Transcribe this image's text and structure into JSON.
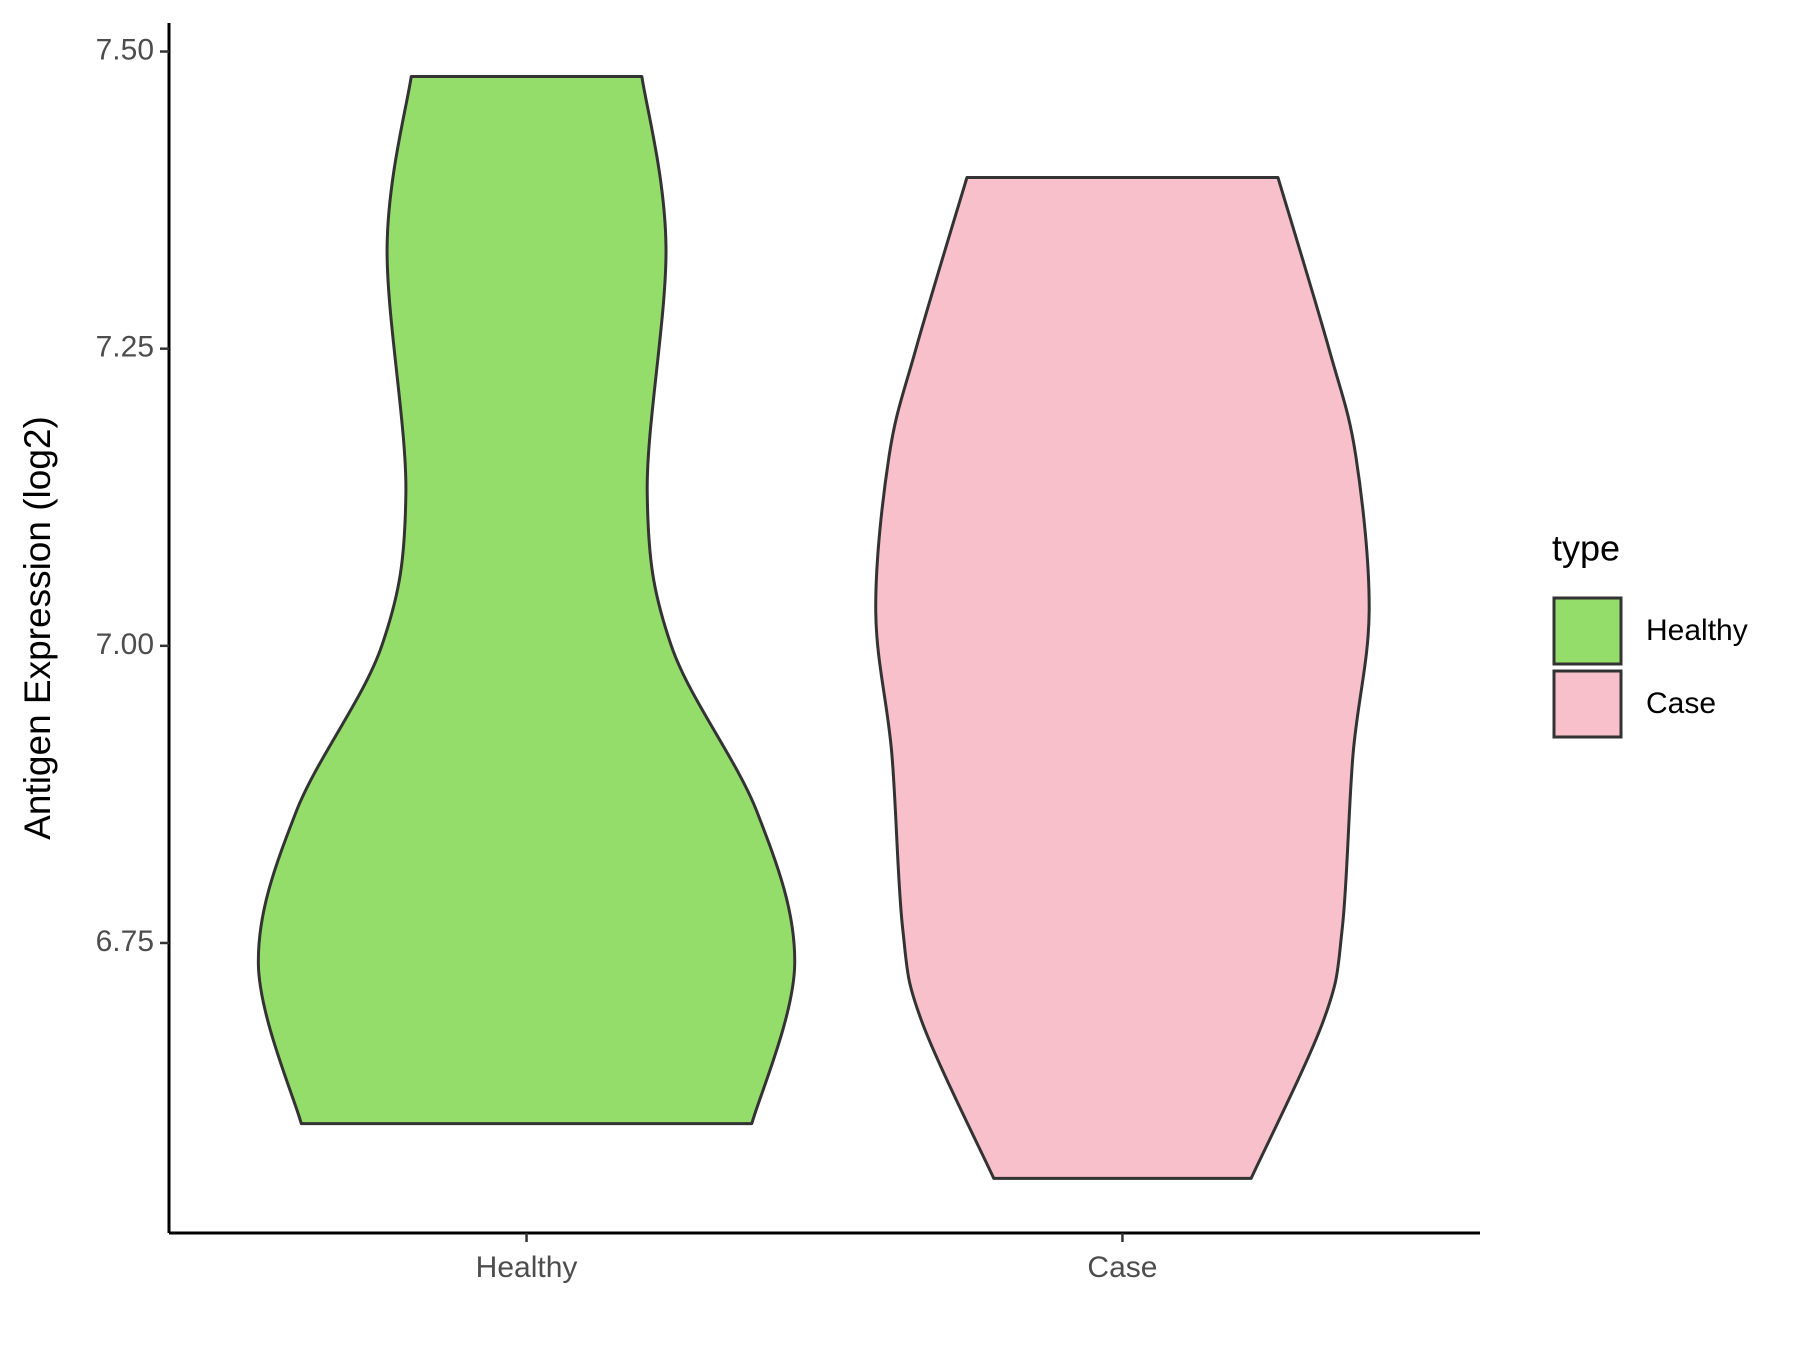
{
  "chart_data": {
    "type": "violin",
    "y_label": "Antigen Expression (log2)",
    "categories": [
      "Healthy",
      "Case"
    ],
    "series": [
      {
        "name": "Healthy",
        "color": "#95dd6b",
        "y": [
          7.479,
          7.336,
          7.129,
          7.0,
          6.86,
          6.732,
          6.598
        ],
        "density": [
          0.43,
          0.52,
          0.45,
          0.54,
          0.86,
          1.0,
          0.84
        ]
      },
      {
        "name": "Case",
        "color": "#f7c0cb",
        "y": [
          7.394,
          7.25,
          7.16,
          7.029,
          6.909,
          6.763,
          6.685,
          6.552
        ],
        "density": [
          0.58,
          0.77,
          0.87,
          0.92,
          0.86,
          0.82,
          0.75,
          0.48
        ]
      }
    ],
    "ylim": [
      6.506,
      7.524
    ],
    "yticks": [
      {
        "value": 6.75,
        "label": "6.75"
      },
      {
        "value": 7.0,
        "label": "7.00"
      },
      {
        "value": 7.25,
        "label": "7.25"
      },
      {
        "value": 7.5,
        "label": "7.50"
      }
    ],
    "legend_title": "type",
    "legend_position": "right"
  }
}
